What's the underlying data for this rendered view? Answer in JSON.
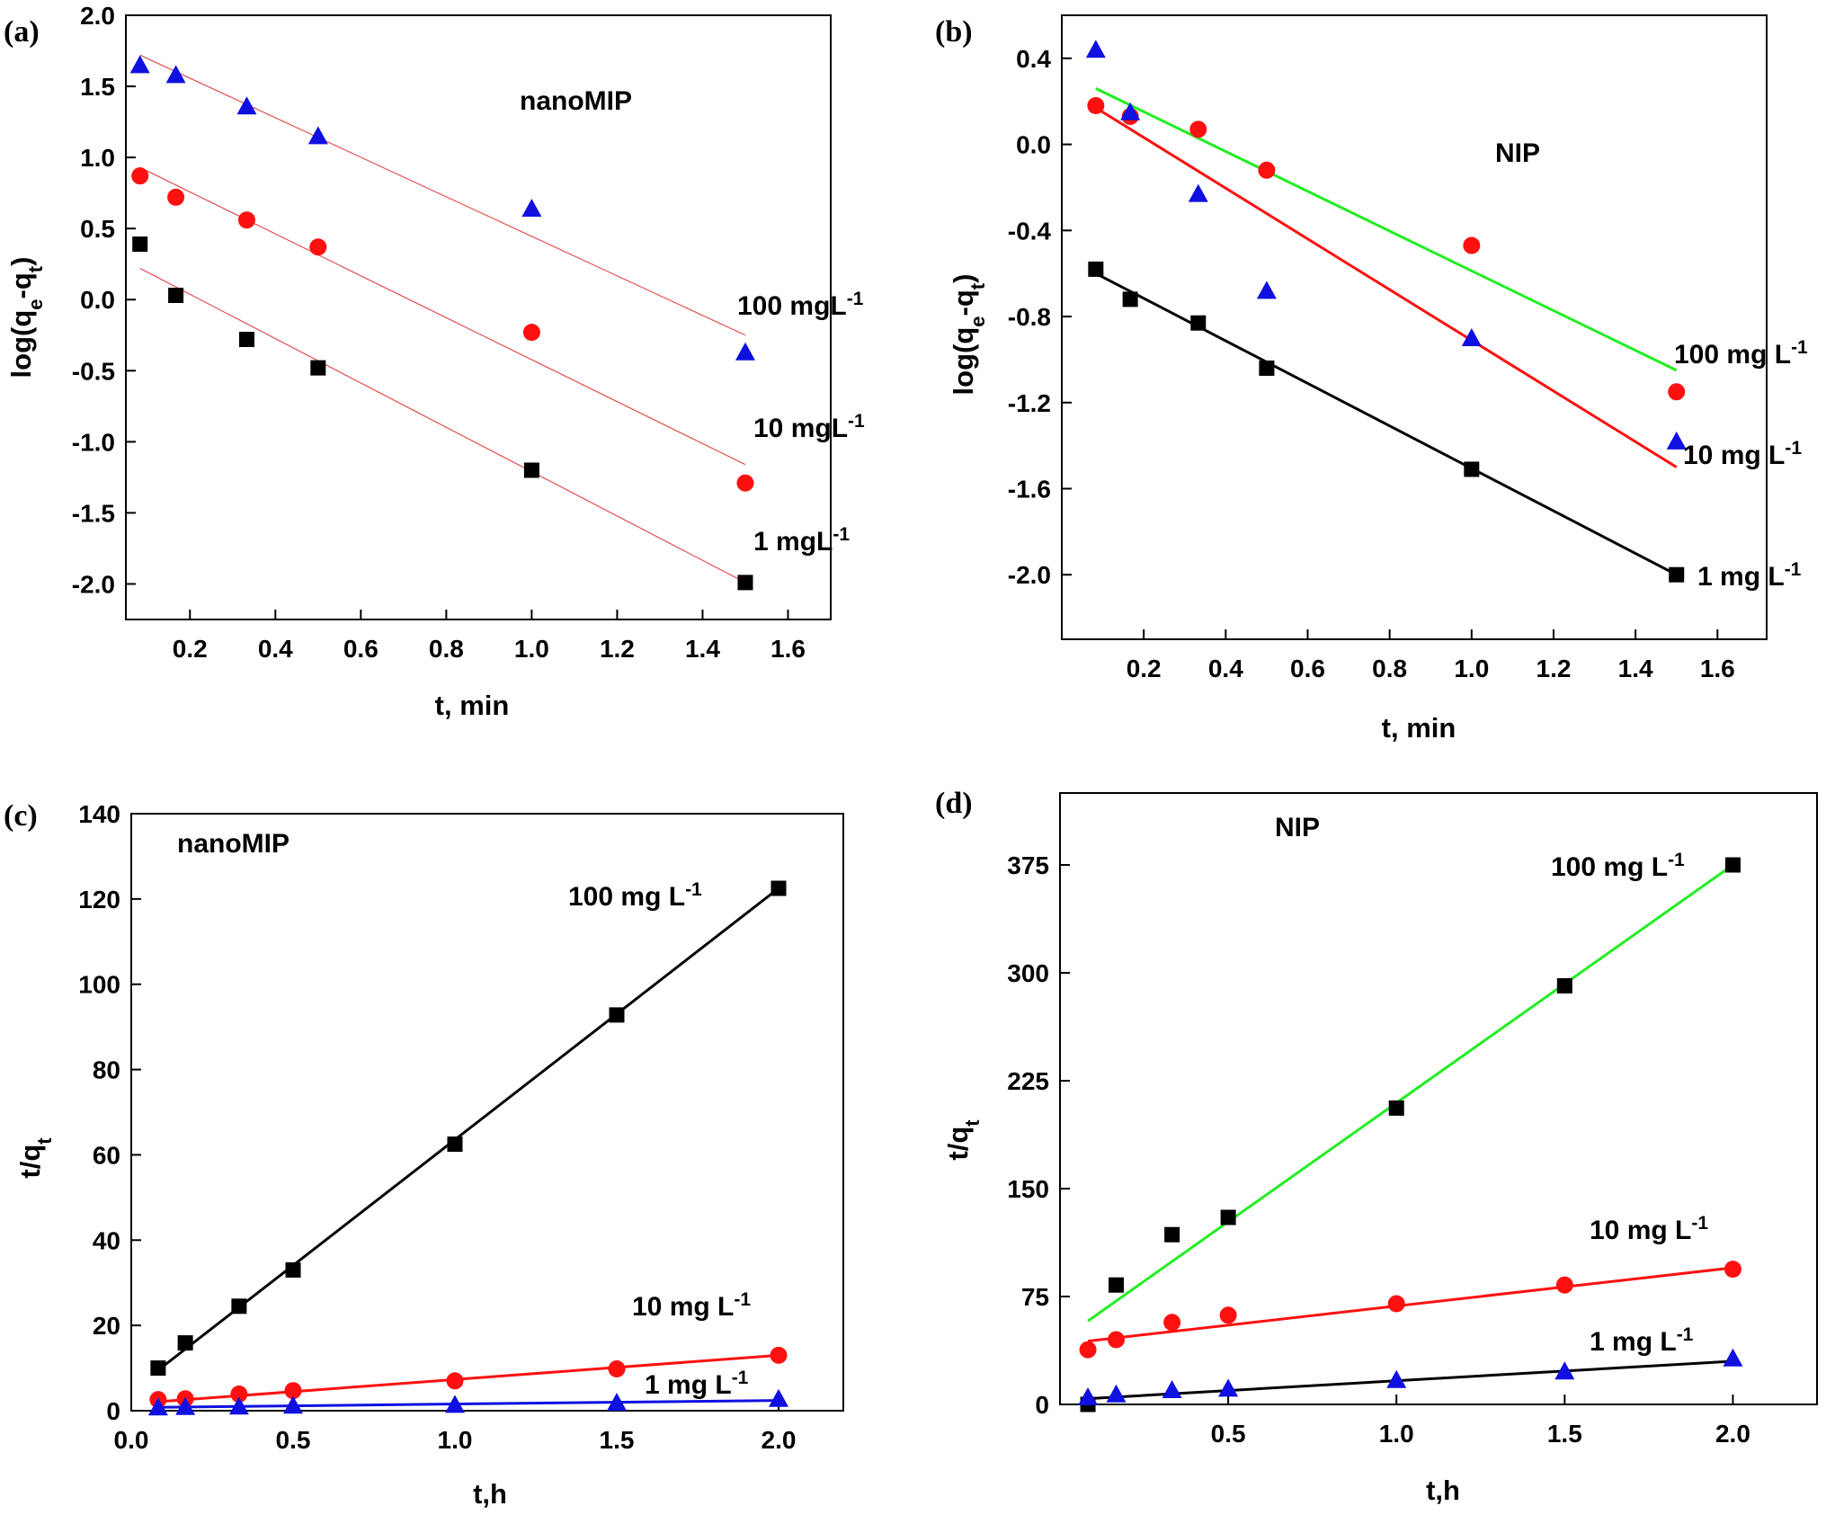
{
  "chart_data": [
    {
      "type": "scatter",
      "panel_label": "(a)",
      "title": "nanoMIP",
      "xlabel": {
        "base": "t, min",
        "sub": "",
        "tail": ""
      },
      "ylabel": {
        "pre": "log(q",
        "sub1": "e",
        "mid": "-q",
        "sub2": "t",
        "post": ")"
      },
      "xlim": [
        0.05,
        1.7
      ],
      "ylim": [
        -2.25,
        2.0
      ],
      "xticks": [
        0.2,
        0.4,
        0.6,
        0.8,
        1.0,
        1.2,
        1.4,
        1.6
      ],
      "xtick_labels": [
        "0.2",
        "0.4",
        "0.6",
        "0.8",
        "1.0",
        "1.2",
        "1.4",
        "1.6"
      ],
      "yticks": [
        2.0,
        1.5,
        1.0,
        0.5,
        0.0,
        -0.5,
        -1.0,
        -1.5,
        -2.0
      ],
      "ytick_labels": [
        "2.0",
        "1.5",
        "1.0",
        "0.5",
        "0.0",
        "-0.5",
        "-1.0",
        "-1.5",
        "-2.0"
      ],
      "series": [
        {
          "name": "100 mgL-1",
          "label": {
            "text": "100 mgL",
            "sup": "-1"
          },
          "marker": "triangle",
          "color": "#1010e0",
          "x": [
            0.083,
            0.167,
            0.333,
            0.5,
            1.0,
            1.5
          ],
          "y": [
            1.65,
            1.58,
            1.36,
            1.15,
            0.64,
            -0.37
          ],
          "fit": {
            "x": [
              0.083,
              1.5
            ],
            "y": [
              1.72,
              -0.25
            ],
            "color": "#e05050",
            "width": 1.2
          }
        },
        {
          "name": "10 mgL-1",
          "label": {
            "text": "10 mgL",
            "sup": "-1"
          },
          "marker": "circle",
          "color": "#ff1010",
          "x": [
            0.083,
            0.167,
            0.333,
            0.5,
            1.0,
            1.5
          ],
          "y": [
            0.87,
            0.72,
            0.56,
            0.37,
            -0.23,
            -1.29
          ],
          "fit": {
            "x": [
              0.083,
              1.5
            ],
            "y": [
              0.93,
              -1.16
            ],
            "color": "#e05050",
            "width": 1.2
          }
        },
        {
          "name": "1 mgL-1",
          "label": {
            "text": "1 mgL",
            "sup": "-1"
          },
          "marker": "square",
          "color": "#000000",
          "x": [
            0.083,
            0.167,
            0.333,
            0.5,
            1.0,
            1.5
          ],
          "y": [
            0.39,
            0.03,
            -0.28,
            -0.48,
            -1.2,
            -1.99
          ],
          "fit": {
            "x": [
              0.083,
              1.5
            ],
            "y": [
              0.22,
              -1.99
            ],
            "color": "#e05050",
            "width": 1.2
          }
        }
      ]
    },
    {
      "type": "scatter",
      "panel_label": "(b)",
      "title": "NIP",
      "xlabel": {
        "base": "t, min",
        "sub": "",
        "tail": ""
      },
      "ylabel": {
        "pre": "log(q",
        "sub1": "e",
        "mid": "-q",
        "sub2": "t",
        "post": ")"
      },
      "xlim": [
        0.0,
        1.72
      ],
      "ylim": [
        -2.3,
        0.6
      ],
      "xticks": [
        0.2,
        0.4,
        0.6,
        0.8,
        1.0,
        1.2,
        1.4,
        1.6
      ],
      "xtick_labels": [
        "0.2",
        "0.4",
        "0.6",
        "0.8",
        "1.0",
        "1.2",
        "1.4",
        "1.6"
      ],
      "yticks": [
        0.4,
        0.0,
        -0.4,
        -0.8,
        -1.2,
        -1.6,
        -2.0
      ],
      "ytick_labels": [
        "0.4",
        "0.0",
        "-0.4",
        "-0.8",
        "-1.2",
        "-1.6",
        "-2.0"
      ],
      "series": [
        {
          "name": "100 mg L-1",
          "label": {
            "text": "100 mg L",
            "sup": "-1"
          },
          "marker": "circle",
          "color": "#ff1010",
          "x": [
            0.083,
            0.167,
            0.333,
            0.5,
            1.0,
            1.5
          ],
          "y": [
            0.18,
            0.13,
            0.07,
            -0.12,
            -0.47,
            -1.15
          ],
          "fit": {
            "x": [
              0.083,
              1.5
            ],
            "y": [
              0.26,
              -1.05
            ],
            "color": "#22ee22",
            "width": 3
          }
        },
        {
          "name": "10 mg L-1",
          "label": {
            "text": "10 mg L",
            "sup": "-1"
          },
          "marker": "triangle",
          "color": "#1010e0",
          "x": [
            0.083,
            0.167,
            0.333,
            0.5,
            1.0,
            1.5
          ],
          "y": [
            0.44,
            0.15,
            -0.23,
            -0.68,
            -0.9,
            -1.38
          ],
          "fit": {
            "x": [
              0.083,
              1.5
            ],
            "y": [
              0.17,
              -1.5
            ],
            "color": "#ff1010",
            "width": 3
          }
        },
        {
          "name": "1 mg L-1",
          "label": {
            "text": "1 mg L",
            "sup": "-1"
          },
          "marker": "square",
          "color": "#000000",
          "x": [
            0.083,
            0.167,
            0.333,
            0.5,
            1.0,
            1.5
          ],
          "y": [
            -0.58,
            -0.72,
            -0.83,
            -1.04,
            -1.51,
            -2.0
          ],
          "fit": {
            "x": [
              0.083,
              1.5
            ],
            "y": [
              -0.6,
              -2.0
            ],
            "color": "#000000",
            "width": 3
          }
        }
      ]
    },
    {
      "type": "scatter",
      "panel_label": "(c)",
      "title": "nanoMIP",
      "xlabel": {
        "base": "t,h",
        "sub": "",
        "tail": ""
      },
      "ylabel": {
        "pre": "t/q",
        "sub1": "t",
        "mid": "",
        "sub2": "",
        "post": ""
      },
      "xlim": [
        0.0,
        2.2
      ],
      "ylim": [
        0,
        140
      ],
      "xticks": [
        0.0,
        0.5,
        1.0,
        1.5,
        2.0
      ],
      "xtick_labels": [
        "0.0",
        "0.5",
        "1.0",
        "1.5",
        "2.0"
      ],
      "yticks": [
        0,
        20,
        40,
        60,
        80,
        100,
        120,
        140
      ],
      "ytick_labels": [
        "0",
        "20",
        "40",
        "60",
        "80",
        "100",
        "120",
        "140"
      ],
      "series": [
        {
          "name": "100 mg L-1",
          "label": {
            "text": "100 mg L",
            "sup": "-1"
          },
          "marker": "square",
          "color": "#000000",
          "x": [
            0.083,
            0.167,
            0.333,
            0.5,
            1.0,
            1.5,
            2.0
          ],
          "y": [
            10,
            15.9,
            24.5,
            33,
            62.5,
            92.8,
            122.5
          ],
          "fit": {
            "x": [
              0.083,
              2.0
            ],
            "y": [
              9.5,
              122.5
            ],
            "color": "#000000",
            "width": 3
          }
        },
        {
          "name": "10 mg L-1",
          "label": {
            "text": "10 mg L",
            "sup": "-1"
          },
          "marker": "circle",
          "color": "#ff1010",
          "x": [
            0.083,
            0.167,
            0.333,
            0.5,
            1.0,
            1.5,
            2.0
          ],
          "y": [
            2.6,
            2.8,
            3.9,
            4.7,
            7.0,
            9.8,
            13.0
          ],
          "fit": {
            "x": [
              0.083,
              2.0
            ],
            "y": [
              2.1,
              13.0
            ],
            "color": "#ff1010",
            "width": 3
          }
        },
        {
          "name": "1 mg L-1",
          "label": {
            "text": "1 mg L",
            "sup": "-1"
          },
          "marker": "triangle",
          "color": "#1010e0",
          "x": [
            0.083,
            0.167,
            0.333,
            0.5,
            1.0,
            1.5,
            2.0
          ],
          "y": [
            0.8,
            0.9,
            1.0,
            1.2,
            1.4,
            1.9,
            2.8
          ],
          "fit": {
            "x": [
              0.083,
              2.0
            ],
            "y": [
              0.8,
              2.4
            ],
            "color": "#1010e0",
            "width": 3
          }
        }
      ]
    },
    {
      "type": "scatter",
      "panel_label": "(d)",
      "title": "NIP",
      "xlabel": {
        "base": "t,h",
        "sub": "",
        "tail": ""
      },
      "ylabel": {
        "pre": "t/q",
        "sub1": "t",
        "mid": "",
        "sub2": "",
        "post": ""
      },
      "xlim": [
        0.0,
        2.25
      ],
      "ylim": [
        0,
        425
      ],
      "xticks": [
        0.5,
        1.0,
        1.5,
        2.0
      ],
      "xtick_labels": [
        "0.5",
        "1.0",
        "1.5",
        "2.0"
      ],
      "yticks": [
        0,
        75,
        150,
        225,
        300,
        375
      ],
      "ytick_labels": [
        "0",
        "75",
        "150",
        "225",
        "300",
        "375"
      ],
      "series": [
        {
          "name": "100 mg L-1",
          "label": {
            "text": "100 mg L",
            "sup": "-1"
          },
          "marker": "square",
          "color": "#000000",
          "x": [
            0.083,
            0.167,
            0.333,
            0.5,
            1.0,
            1.5,
            2.0
          ],
          "y": [
            0,
            83,
            118,
            130,
            206,
            291,
            375
          ],
          "fit": {
            "x": [
              0.083,
              2.0
            ],
            "y": [
              58,
              375
            ],
            "color": "#22ee22",
            "width": 3
          }
        },
        {
          "name": "10 mg L-1",
          "label": {
            "text": "10 mg L",
            "sup": "-1"
          },
          "marker": "circle",
          "color": "#ff1010",
          "x": [
            0.083,
            0.167,
            0.333,
            0.5,
            1.0,
            1.5,
            2.0
          ],
          "y": [
            38,
            45,
            57,
            62,
            70,
            83,
            94
          ],
          "fit": {
            "x": [
              0.083,
              2.0
            ],
            "y": [
              44,
              95
            ],
            "color": "#ff1010",
            "width": 3
          }
        },
        {
          "name": "1 mg L-1",
          "label": {
            "text": "1 mg L",
            "sup": "-1"
          },
          "marker": "triangle",
          "color": "#1010e0",
          "x": [
            0.083,
            0.167,
            0.333,
            0.5,
            1.0,
            1.5,
            2.0
          ],
          "y": [
            5,
            7,
            10,
            11,
            17,
            23,
            32
          ],
          "fit": {
            "x": [
              0.083,
              2.0
            ],
            "y": [
              4,
              30
            ],
            "color": "#000000",
            "width": 3
          }
        }
      ]
    }
  ]
}
